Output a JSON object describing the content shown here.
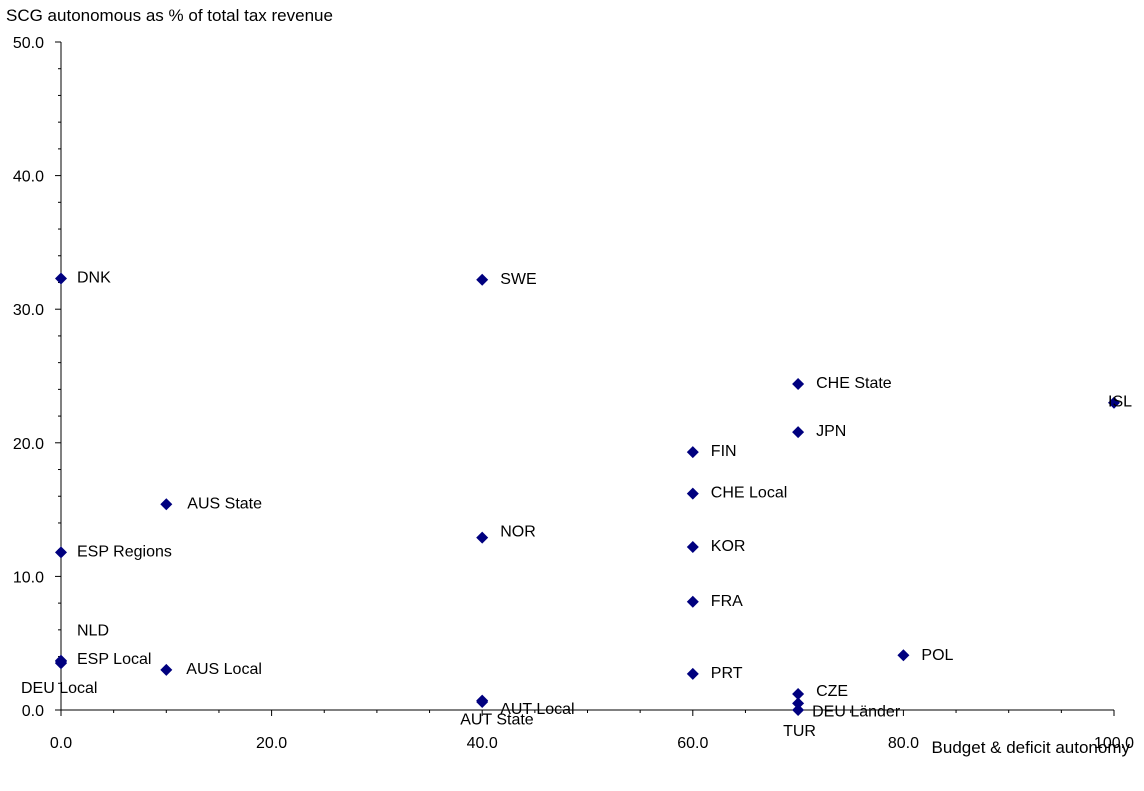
{
  "chart_data": {
    "type": "scatter",
    "title": "SCG autonomous as % of total tax revenue",
    "xlabel": "Budget & deficit autonomy",
    "ylabel": "",
    "xlim": [
      0,
      100
    ],
    "ylim": [
      0,
      50
    ],
    "x_ticks": [
      "0.0",
      "20.0",
      "40.0",
      "60.0",
      "80.0",
      "100.0"
    ],
    "y_ticks": [
      "0.0",
      "10.0",
      "20.0",
      "30.0",
      "40.0",
      "50.0"
    ],
    "grid": false,
    "marker_color": "#00007F",
    "points": [
      {
        "label": "DNK",
        "x": 0,
        "y": 32.3
      },
      {
        "label": "SWE",
        "x": 40,
        "y": 32.2
      },
      {
        "label": "CHE State",
        "x": 70,
        "y": 24.4
      },
      {
        "label": "ISL",
        "x": 100,
        "y": 23.0
      },
      {
        "label": "JPN",
        "x": 70,
        "y": 20.8
      },
      {
        "label": "FIN",
        "x": 60,
        "y": 19.3
      },
      {
        "label": "CHE Local",
        "x": 60,
        "y": 16.2
      },
      {
        "label": "AUS State",
        "x": 10,
        "y": 15.4
      },
      {
        "label": "NOR",
        "x": 40,
        "y": 12.9
      },
      {
        "label": "KOR",
        "x": 60,
        "y": 12.2
      },
      {
        "label": "ESP Regions",
        "x": 0,
        "y": 11.8
      },
      {
        "label": "FRA",
        "x": 60,
        "y": 8.1
      },
      {
        "label": "NLD",
        "x": 0,
        "y": 3.7
      },
      {
        "label": "ESP Local",
        "x": 0,
        "y": 3.6
      },
      {
        "label": "POL",
        "x": 80,
        "y": 4.1
      },
      {
        "label": "AUS Local",
        "x": 10,
        "y": 3.0
      },
      {
        "label": "PRT",
        "x": 60,
        "y": 2.7
      },
      {
        "label": "DEU Local",
        "x": 0,
        "y": 3.5
      },
      {
        "label": "CZE",
        "x": 70,
        "y": 1.2
      },
      {
        "label": "AUT Local",
        "x": 40,
        "y": 0.6
      },
      {
        "label": "AUT State",
        "x": 40,
        "y": 0.7
      },
      {
        "label": "DEU Länder",
        "x": 70,
        "y": 0.5
      },
      {
        "label": "TUR",
        "x": 70,
        "y": 0.0
      }
    ]
  }
}
